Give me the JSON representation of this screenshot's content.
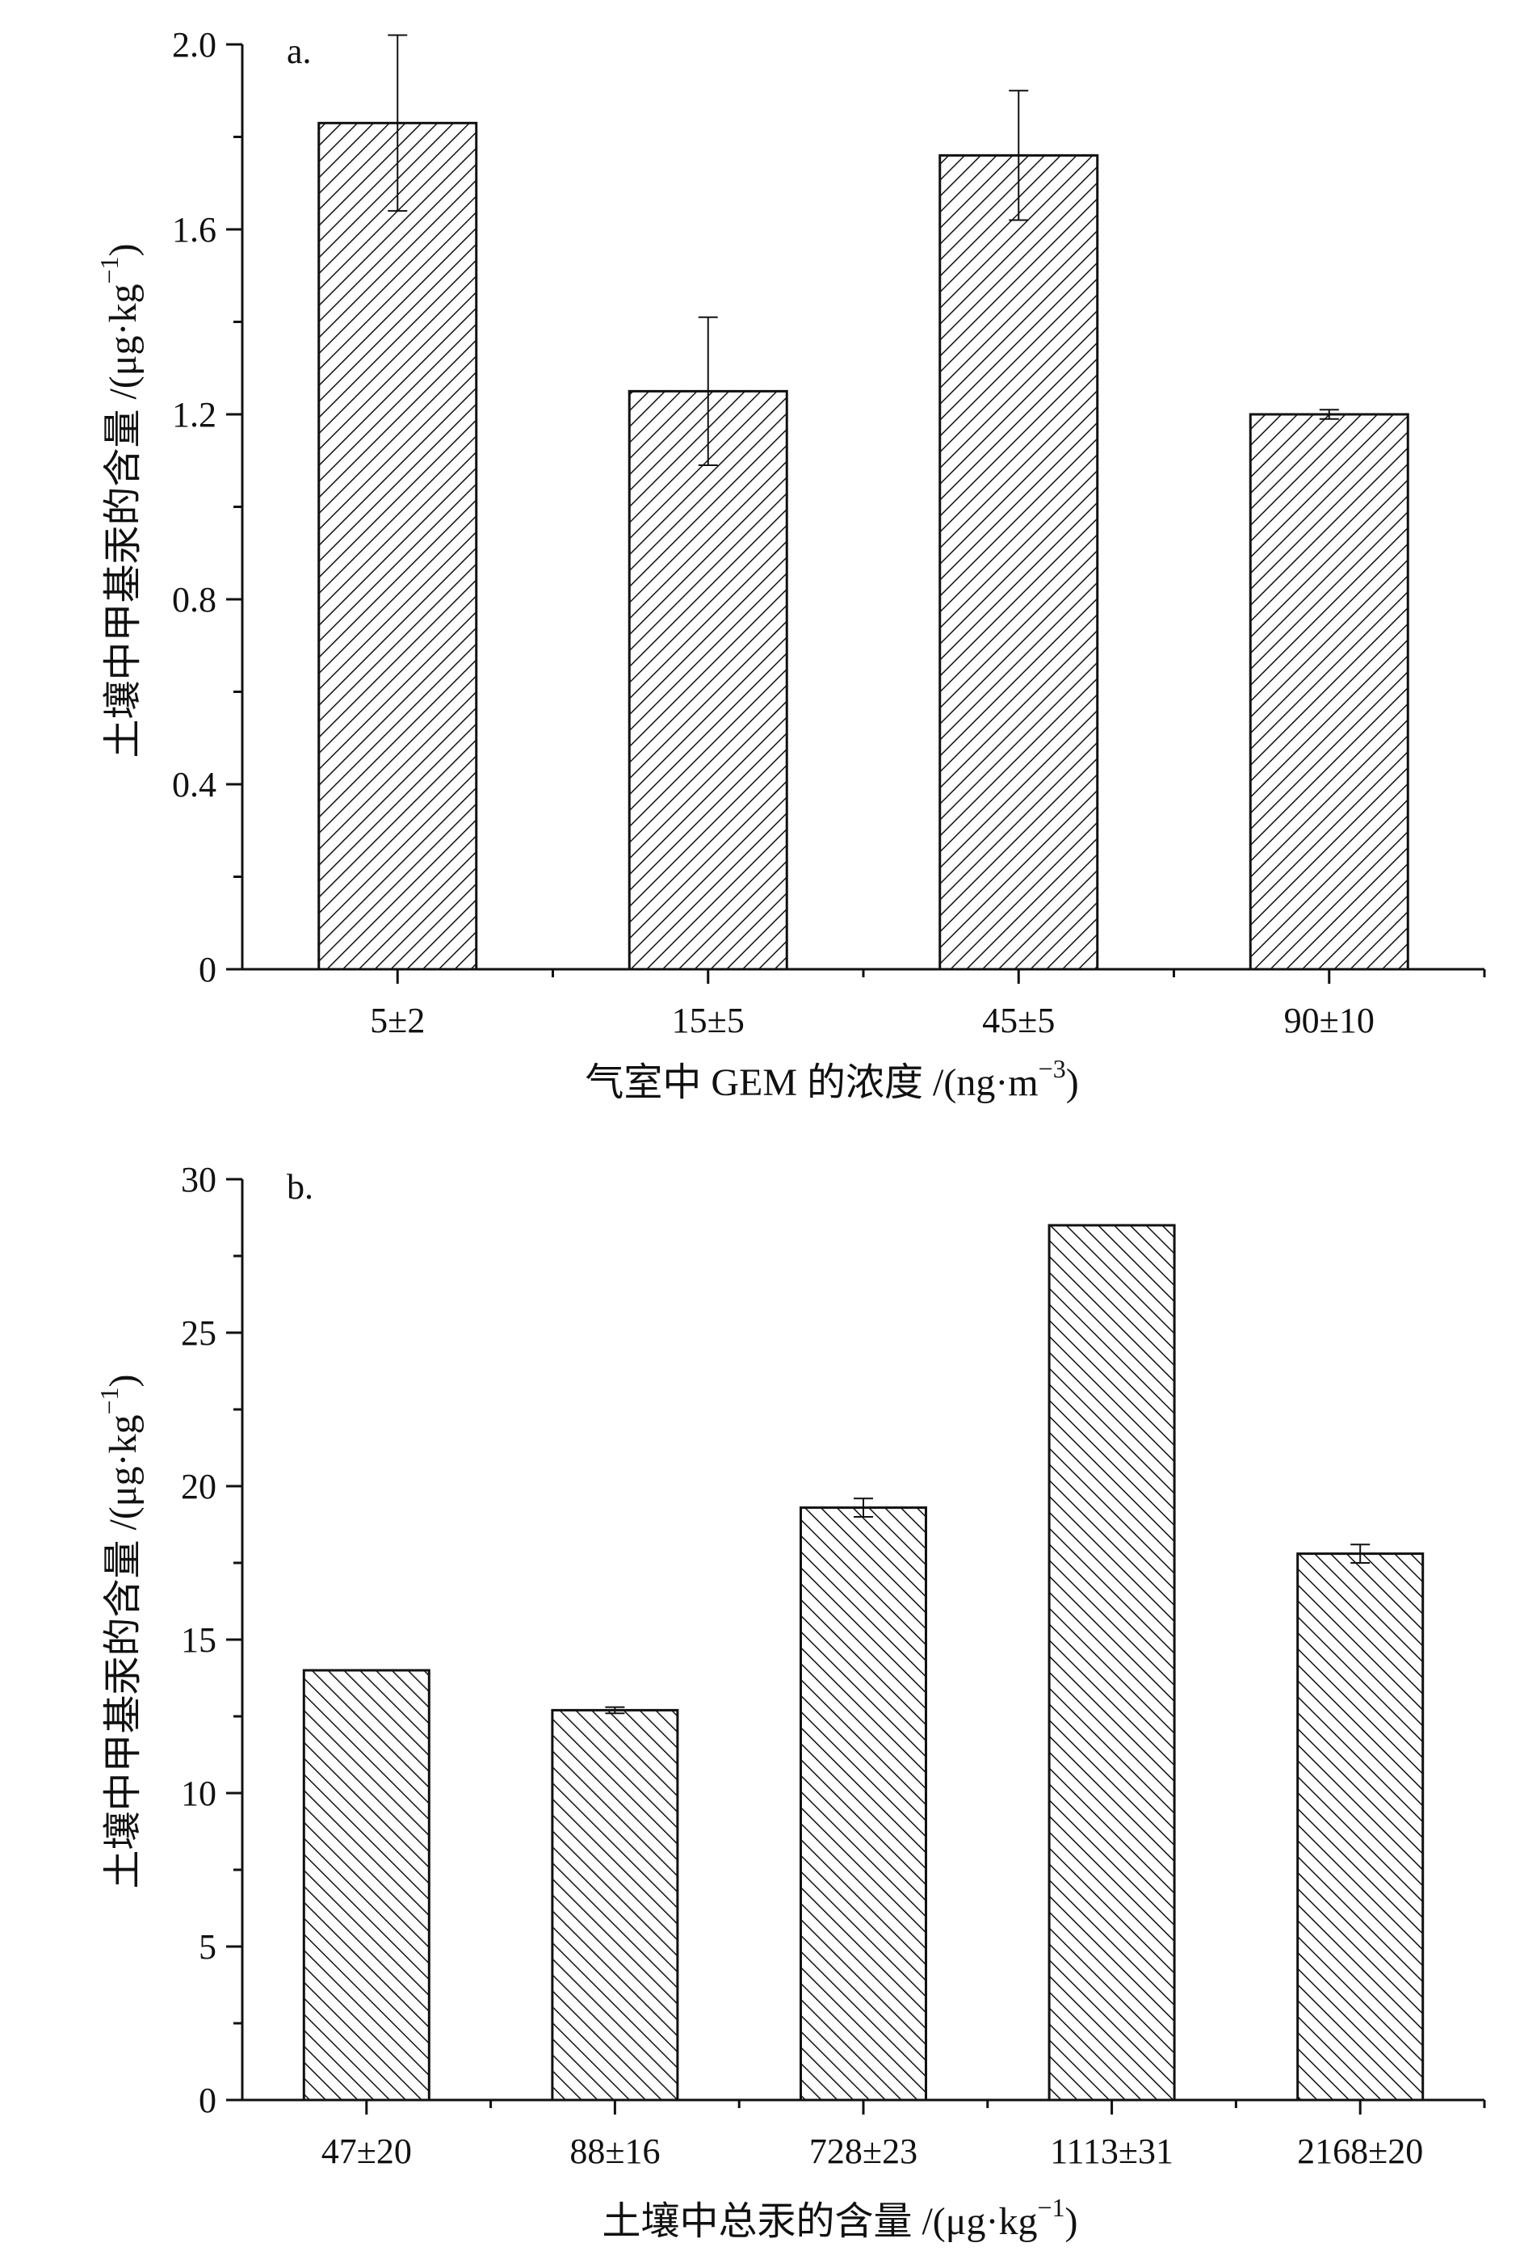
{
  "chart_data": [
    {
      "type": "bar",
      "panel_label": "a.",
      "categories": [
        "5±2",
        "15±5",
        "45±5",
        "90±10"
      ],
      "values": [
        1.83,
        1.25,
        1.76,
        1.2
      ],
      "errors": [
        0.19,
        0.16,
        0.14,
        0.01
      ],
      "xlabel_main": "气室中 GEM 的浓度 /(ng·m",
      "xlabel_exp": "−3",
      "xlabel_close": ")",
      "ylabel_main": "土壤中甲基汞的含量 /(μg·kg",
      "ylabel_exp": "−1",
      "ylabel_close": ")",
      "ylim": [
        0,
        2.0
      ],
      "yticks": [
        0,
        0.4,
        0.8,
        1.2,
        1.6,
        2.0
      ],
      "ytick_labels": [
        "0",
        "0.4",
        "0.8",
        "1.2",
        "1.6",
        "2.0"
      ],
      "hatch": "forward-diagonal",
      "grid": false
    },
    {
      "type": "bar",
      "panel_label": "b.",
      "categories": [
        "47±20",
        "88±16",
        "728±23",
        "1113±31",
        "2168±20"
      ],
      "values": [
        14.0,
        12.7,
        19.3,
        28.5,
        17.8
      ],
      "errors": [
        0,
        0.1,
        0.3,
        0,
        0.3
      ],
      "xlabel_main": "土壤中总汞的含量 /(μg·kg",
      "xlabel_exp": "−1",
      "xlabel_close": ")",
      "ylabel_main": "土壤中甲基汞的含量 /(μg·kg",
      "ylabel_exp": "−1",
      "ylabel_close": ")",
      "ylim": [
        0,
        30
      ],
      "yticks": [
        0,
        5,
        10,
        15,
        20,
        25,
        30
      ],
      "ytick_labels": [
        "0",
        "5",
        "10",
        "15",
        "20",
        "25",
        "30"
      ],
      "hatch": "back-diagonal",
      "grid": false
    }
  ]
}
